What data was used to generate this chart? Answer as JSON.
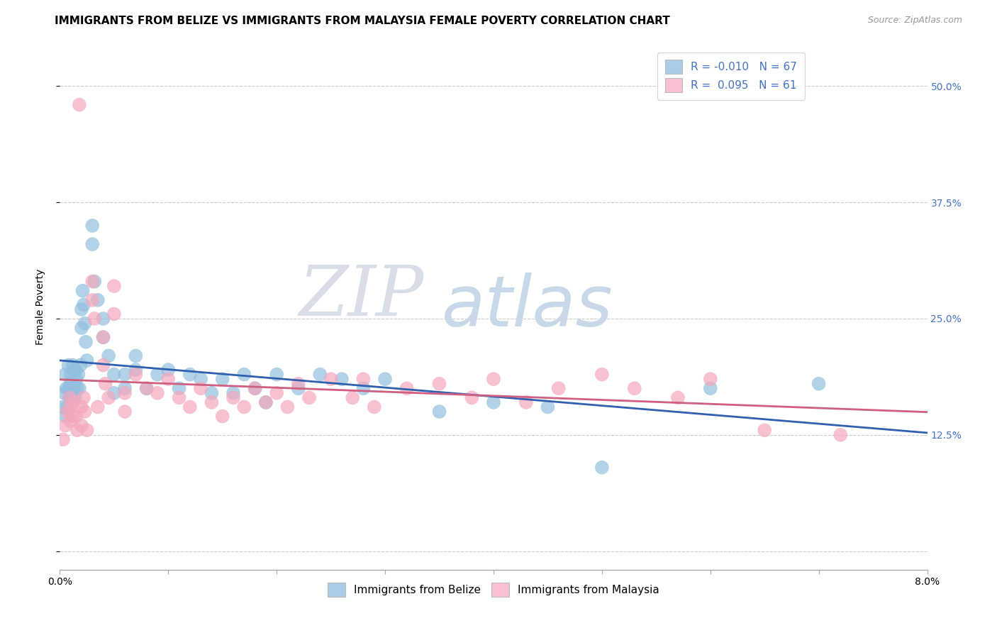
{
  "title": "IMMIGRANTS FROM BELIZE VS IMMIGRANTS FROM MALAYSIA FEMALE POVERTY CORRELATION CHART",
  "source": "Source: ZipAtlas.com",
  "ylabel": "Female Poverty",
  "ytick_vals": [
    0.0,
    0.125,
    0.25,
    0.375,
    0.5
  ],
  "ytick_labels": [
    "",
    "12.5%",
    "25.0%",
    "37.5%",
    "50.0%"
  ],
  "xtick_vals": [
    0.0,
    0.01,
    0.02,
    0.03,
    0.04,
    0.05,
    0.06,
    0.07,
    0.08
  ],
  "xlim": [
    0.0,
    0.08
  ],
  "ylim": [
    -0.02,
    0.545
  ],
  "belize_color": "#92bfdf",
  "malaysia_color": "#f4a7bc",
  "belize_line_color": "#3060b0",
  "malaysia_line_color": "#d06080",
  "background_color": "#ffffff",
  "grid_color": "#cccccc",
  "watermark_zip": "ZIP",
  "watermark_atlas": "atlas",
  "legend_belize_label": "Immigrants from Belize",
  "legend_malaysia_label": "Immigrants from Malaysia",
  "legend_belize_color": "#aacce8",
  "legend_malaysia_color": "#f8c0d0",
  "R_belize": "-0.010",
  "N_belize": "67",
  "R_malaysia": "0.095",
  "N_malaysia": "61",
  "belize_x": [
    0.0003,
    0.0004,
    0.0005,
    0.0005,
    0.0006,
    0.0007,
    0.0008,
    0.0008,
    0.0009,
    0.001,
    0.001,
    0.001,
    0.0012,
    0.0012,
    0.0013,
    0.0013,
    0.0014,
    0.0015,
    0.0015,
    0.0016,
    0.0017,
    0.0018,
    0.0019,
    0.002,
    0.002,
    0.0021,
    0.0022,
    0.0023,
    0.0024,
    0.0025,
    0.003,
    0.003,
    0.0032,
    0.0035,
    0.004,
    0.004,
    0.0045,
    0.005,
    0.005,
    0.006,
    0.006,
    0.007,
    0.007,
    0.008,
    0.009,
    0.01,
    0.011,
    0.012,
    0.013,
    0.014,
    0.015,
    0.016,
    0.017,
    0.018,
    0.019,
    0.02,
    0.022,
    0.024,
    0.026,
    0.028,
    0.03,
    0.035,
    0.04,
    0.045,
    0.05,
    0.06,
    0.07
  ],
  "belize_y": [
    0.155,
    0.17,
    0.145,
    0.19,
    0.175,
    0.155,
    0.175,
    0.2,
    0.165,
    0.19,
    0.18,
    0.165,
    0.2,
    0.175,
    0.195,
    0.175,
    0.165,
    0.185,
    0.195,
    0.175,
    0.19,
    0.175,
    0.2,
    0.26,
    0.24,
    0.28,
    0.265,
    0.245,
    0.225,
    0.205,
    0.35,
    0.33,
    0.29,
    0.27,
    0.25,
    0.23,
    0.21,
    0.19,
    0.17,
    0.175,
    0.19,
    0.21,
    0.195,
    0.175,
    0.19,
    0.195,
    0.175,
    0.19,
    0.185,
    0.17,
    0.185,
    0.17,
    0.19,
    0.175,
    0.16,
    0.19,
    0.175,
    0.19,
    0.185,
    0.175,
    0.185,
    0.15,
    0.16,
    0.155,
    0.09,
    0.175,
    0.18
  ],
  "malaysia_x": [
    0.0003,
    0.0005,
    0.0007,
    0.0009,
    0.001,
    0.001,
    0.0012,
    0.0013,
    0.0015,
    0.0016,
    0.0018,
    0.002,
    0.002,
    0.0022,
    0.0023,
    0.0025,
    0.003,
    0.003,
    0.0032,
    0.0035,
    0.004,
    0.004,
    0.0042,
    0.0045,
    0.005,
    0.005,
    0.006,
    0.006,
    0.007,
    0.008,
    0.009,
    0.01,
    0.011,
    0.012,
    0.013,
    0.014,
    0.015,
    0.016,
    0.017,
    0.018,
    0.019,
    0.02,
    0.021,
    0.022,
    0.023,
    0.025,
    0.027,
    0.029,
    0.032,
    0.035,
    0.038,
    0.04,
    0.043,
    0.046,
    0.05,
    0.053,
    0.057,
    0.06,
    0.065,
    0.072,
    0.028
  ],
  "malaysia_y": [
    0.12,
    0.135,
    0.15,
    0.165,
    0.14,
    0.155,
    0.145,
    0.16,
    0.145,
    0.13,
    0.48,
    0.135,
    0.155,
    0.165,
    0.15,
    0.13,
    0.29,
    0.27,
    0.25,
    0.155,
    0.23,
    0.2,
    0.18,
    0.165,
    0.285,
    0.255,
    0.15,
    0.17,
    0.19,
    0.175,
    0.17,
    0.185,
    0.165,
    0.155,
    0.175,
    0.16,
    0.145,
    0.165,
    0.155,
    0.175,
    0.16,
    0.17,
    0.155,
    0.18,
    0.165,
    0.185,
    0.165,
    0.155,
    0.175,
    0.18,
    0.165,
    0.185,
    0.16,
    0.175,
    0.19,
    0.175,
    0.165,
    0.185,
    0.13,
    0.125,
    0.185
  ],
  "title_fontsize": 11,
  "axis_label_fontsize": 10,
  "tick_fontsize": 10,
  "legend_fontsize": 11,
  "source_fontsize": 9
}
